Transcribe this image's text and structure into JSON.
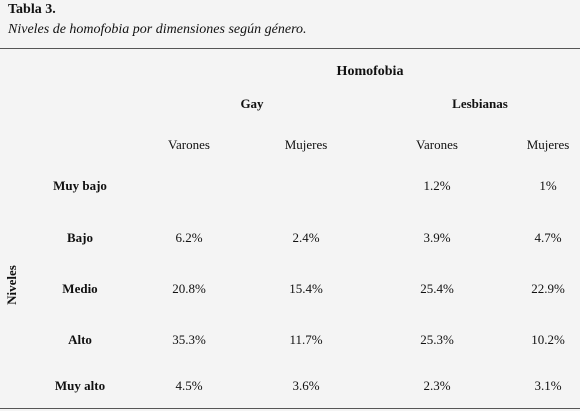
{
  "table": {
    "title": "Tabla 3.",
    "caption": "Niveles de homofobia por dimensiones según género.",
    "header": {
      "group": "Homofobia",
      "subgroups": [
        "Gay",
        "Lesbianas"
      ],
      "columns": [
        "Varones",
        "Mujeres",
        "Varones",
        "Mujeres"
      ]
    },
    "side_label": "Niveles",
    "rows": [
      {
        "label": "Muy bajo",
        "cells": [
          null,
          null,
          "1.2%",
          "1%"
        ]
      },
      {
        "label": "Bajo",
        "cells": [
          "6.2%",
          "2.4%",
          "3.9%",
          "4.7%"
        ]
      },
      {
        "label": "Medio",
        "cells": [
          "20.8%",
          "15.4%",
          "25.4%",
          "22.9%"
        ]
      },
      {
        "label": "Alto",
        "cells": [
          "35.3%",
          "11.7%",
          "25.3%",
          "10.2%"
        ]
      },
      {
        "label": "Muy alto",
        "cells": [
          "4.5%",
          "3.6%",
          "2.3%",
          "3.1%"
        ]
      }
    ]
  }
}
